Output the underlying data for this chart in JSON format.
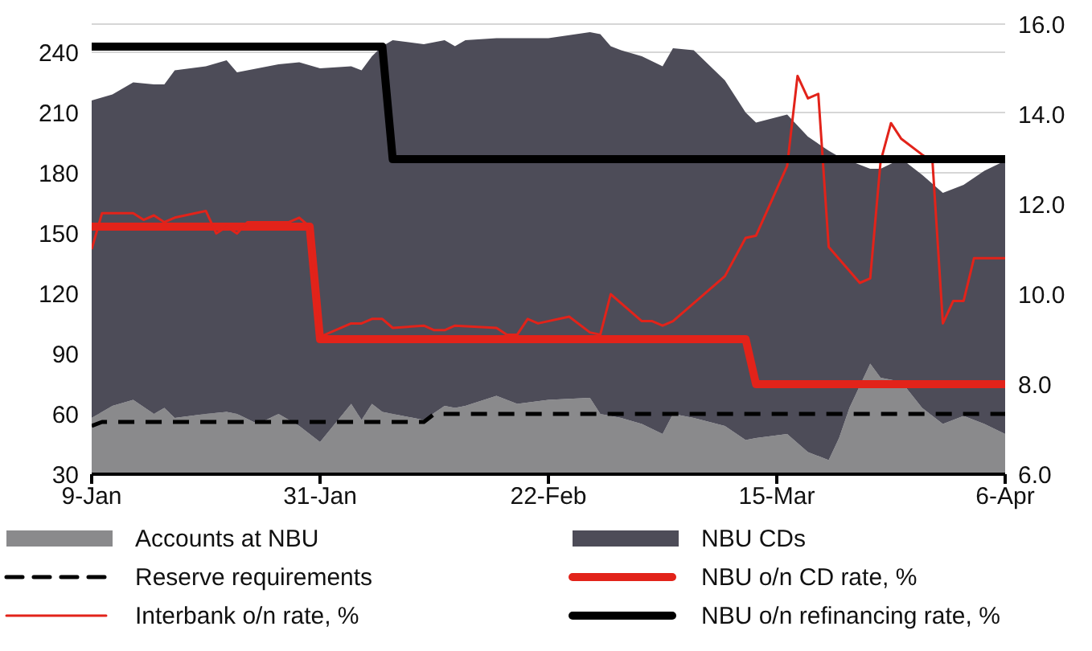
{
  "chart_data": {
    "type": "area",
    "stacked": true,
    "grid": "y",
    "legend": "bottom",
    "x": [
      "--01-09",
      "--01-11",
      "--01-13",
      "--01-15",
      "--01-16",
      "--01-17",
      "--01-20",
      "--01-22",
      "--01-23",
      "--01-25",
      "--01-27",
      "--01-29",
      "--01-31",
      "--02-03",
      "--02-04",
      "--02-05",
      "--02-06",
      "--02-07",
      "--02-10",
      "--02-12",
      "--02-13",
      "--02-14",
      "--02-17",
      "--02-19",
      "--02-22",
      "--02-26",
      "--02-27",
      "--02-28",
      "--02-29",
      "--03-02",
      "--03-04",
      "--03-05",
      "--03-07",
      "--03-10",
      "--03-12",
      "--03-13",
      "--03-16",
      "--03-18",
      "--03-20",
      "--03-21",
      "--03-22",
      "--03-24",
      "--03-25",
      "--03-27",
      "--03-29",
      "--03-31",
      "--04-02",
      "--04-04",
      "--04-06"
    ],
    "xlim": [
      "--01-09",
      "--04-06"
    ],
    "xticks": [
      {
        "value": "--01-09",
        "label": "9-Jan"
      },
      {
        "value": "--01-31",
        "label": "31-Jan"
      },
      {
        "value": "--02-22",
        "label": "22-Feb"
      },
      {
        "value": "--03-15",
        "label": "15-Mar"
      },
      {
        "value": "--04-06",
        "label": "6-Apr"
      }
    ],
    "ylim": [
      30,
      254
    ],
    "yticks": [
      30,
      60,
      90,
      120,
      150,
      180,
      210,
      240
    ],
    "y2lim": [
      6,
      16
    ],
    "y2ticks": [
      {
        "value": 6,
        "label": "6.0"
      },
      {
        "value": 8,
        "label": "8.0"
      },
      {
        "value": 10,
        "label": "10.0"
      },
      {
        "value": 12,
        "label": "12.0"
      },
      {
        "value": 14,
        "label": "14.0"
      },
      {
        "value": 16,
        "label": "16.0"
      }
    ],
    "series": [
      {
        "name": "Accounts at NBU",
        "color": "#8a8a8c",
        "values": [
          58,
          64,
          67,
          60,
          63,
          58,
          60,
          61,
          60,
          55,
          60,
          54,
          46,
          65,
          57,
          65,
          61,
          60,
          57,
          64,
          63,
          64,
          69,
          65,
          67,
          68,
          60,
          59,
          58,
          55,
          50,
          60,
          58,
          54,
          47,
          48,
          50,
          41,
          37,
          48,
          63,
          85,
          78,
          76,
          63,
          55,
          59,
          55,
          50
        ]
      },
      {
        "name": "NBU CDs",
        "color": "#4d4c58",
        "values": [
          158,
          155,
          158,
          164,
          161,
          173,
          173,
          175,
          170,
          177,
          174,
          181,
          186,
          168,
          174,
          173,
          182,
          186,
          187,
          182,
          180,
          182,
          178,
          182,
          180,
          182,
          189,
          184,
          183,
          183,
          183,
          182,
          183,
          172,
          163,
          157,
          159,
          157,
          154,
          140,
          123,
          97,
          104,
          111,
          116,
          115,
          115,
          126,
          136
        ]
      },
      {
        "name": "Reserve requirements",
        "type": "line",
        "line_style": "dashed",
        "color": "#000000",
        "x": [
          "--01-09",
          "--01-10",
          "--02-10",
          "--02-11",
          "--04-06"
        ],
        "values": [
          54,
          56,
          56,
          60,
          60
        ]
      },
      {
        "name": "NBU o/n CD rate, %",
        "type": "line",
        "axis": "y2",
        "color": "#e2231a",
        "x": [
          "--01-09",
          "--01-30",
          "--01-31",
          "--03-12",
          "--03-13",
          "--04-06"
        ],
        "values": [
          11.5,
          11.5,
          9,
          9,
          8,
          8
        ]
      },
      {
        "name": "Interbank o/n rate, %",
        "type": "line",
        "axis": "y2",
        "color": "#e2231a",
        "x": [
          "--01-09",
          "--01-10",
          "--01-11",
          "--01-13",
          "--01-14",
          "--01-15",
          "--01-16",
          "--01-17",
          "--01-20",
          "--01-21",
          "--01-22",
          "--01-23",
          "--01-24",
          "--01-28",
          "--01-29",
          "--01-30",
          "--01-31",
          "--02-03",
          "--02-04",
          "--02-05",
          "--02-06",
          "--02-07",
          "--02-10",
          "--02-11",
          "--02-12",
          "--02-13",
          "--02-17",
          "--02-18",
          "--02-19",
          "--02-20",
          "--02-21",
          "--02-24",
          "--02-26",
          "--02-27",
          "--02-28",
          "--03-02",
          "--03-03",
          "--03-04",
          "--03-05",
          "--03-10",
          "--03-12",
          "--03-13",
          "--03-16",
          "--03-17",
          "--03-18",
          "--03-19",
          "--03-20",
          "--03-23",
          "--03-24",
          "--03-25",
          "--03-26",
          "--03-27",
          "--03-29",
          "--03-30",
          "--03-31",
          "--04-01",
          "--04-02",
          "--04-03",
          "--04-06"
        ],
        "values": [
          11.0,
          11.8,
          11.8,
          11.8,
          11.65,
          11.75,
          11.6,
          11.7,
          11.85,
          11.35,
          11.5,
          11.35,
          11.6,
          11.6,
          11.7,
          11.5,
          9.05,
          9.35,
          9.35,
          9.45,
          9.45,
          9.25,
          9.3,
          9.2,
          9.2,
          9.3,
          9.25,
          9.1,
          9.1,
          9.45,
          9.35,
          9.5,
          9.15,
          9.1,
          10.0,
          9.4,
          9.4,
          9.3,
          9.4,
          10.4,
          11.25,
          11.3,
          12.85,
          14.85,
          14.35,
          14.45,
          11.05,
          10.25,
          10.35,
          12.95,
          13.8,
          13.45,
          13.1,
          12.95,
          9.35,
          9.85,
          9.85,
          10.8,
          10.8
        ]
      },
      {
        "name": "NBU o/n refinancing rate, %",
        "type": "line",
        "axis": "y2",
        "color": "#000000",
        "x": [
          "--01-09",
          "--02-06",
          "--02-07",
          "--04-06"
        ],
        "values": [
          15.5,
          15.5,
          13,
          13
        ]
      }
    ]
  }
}
